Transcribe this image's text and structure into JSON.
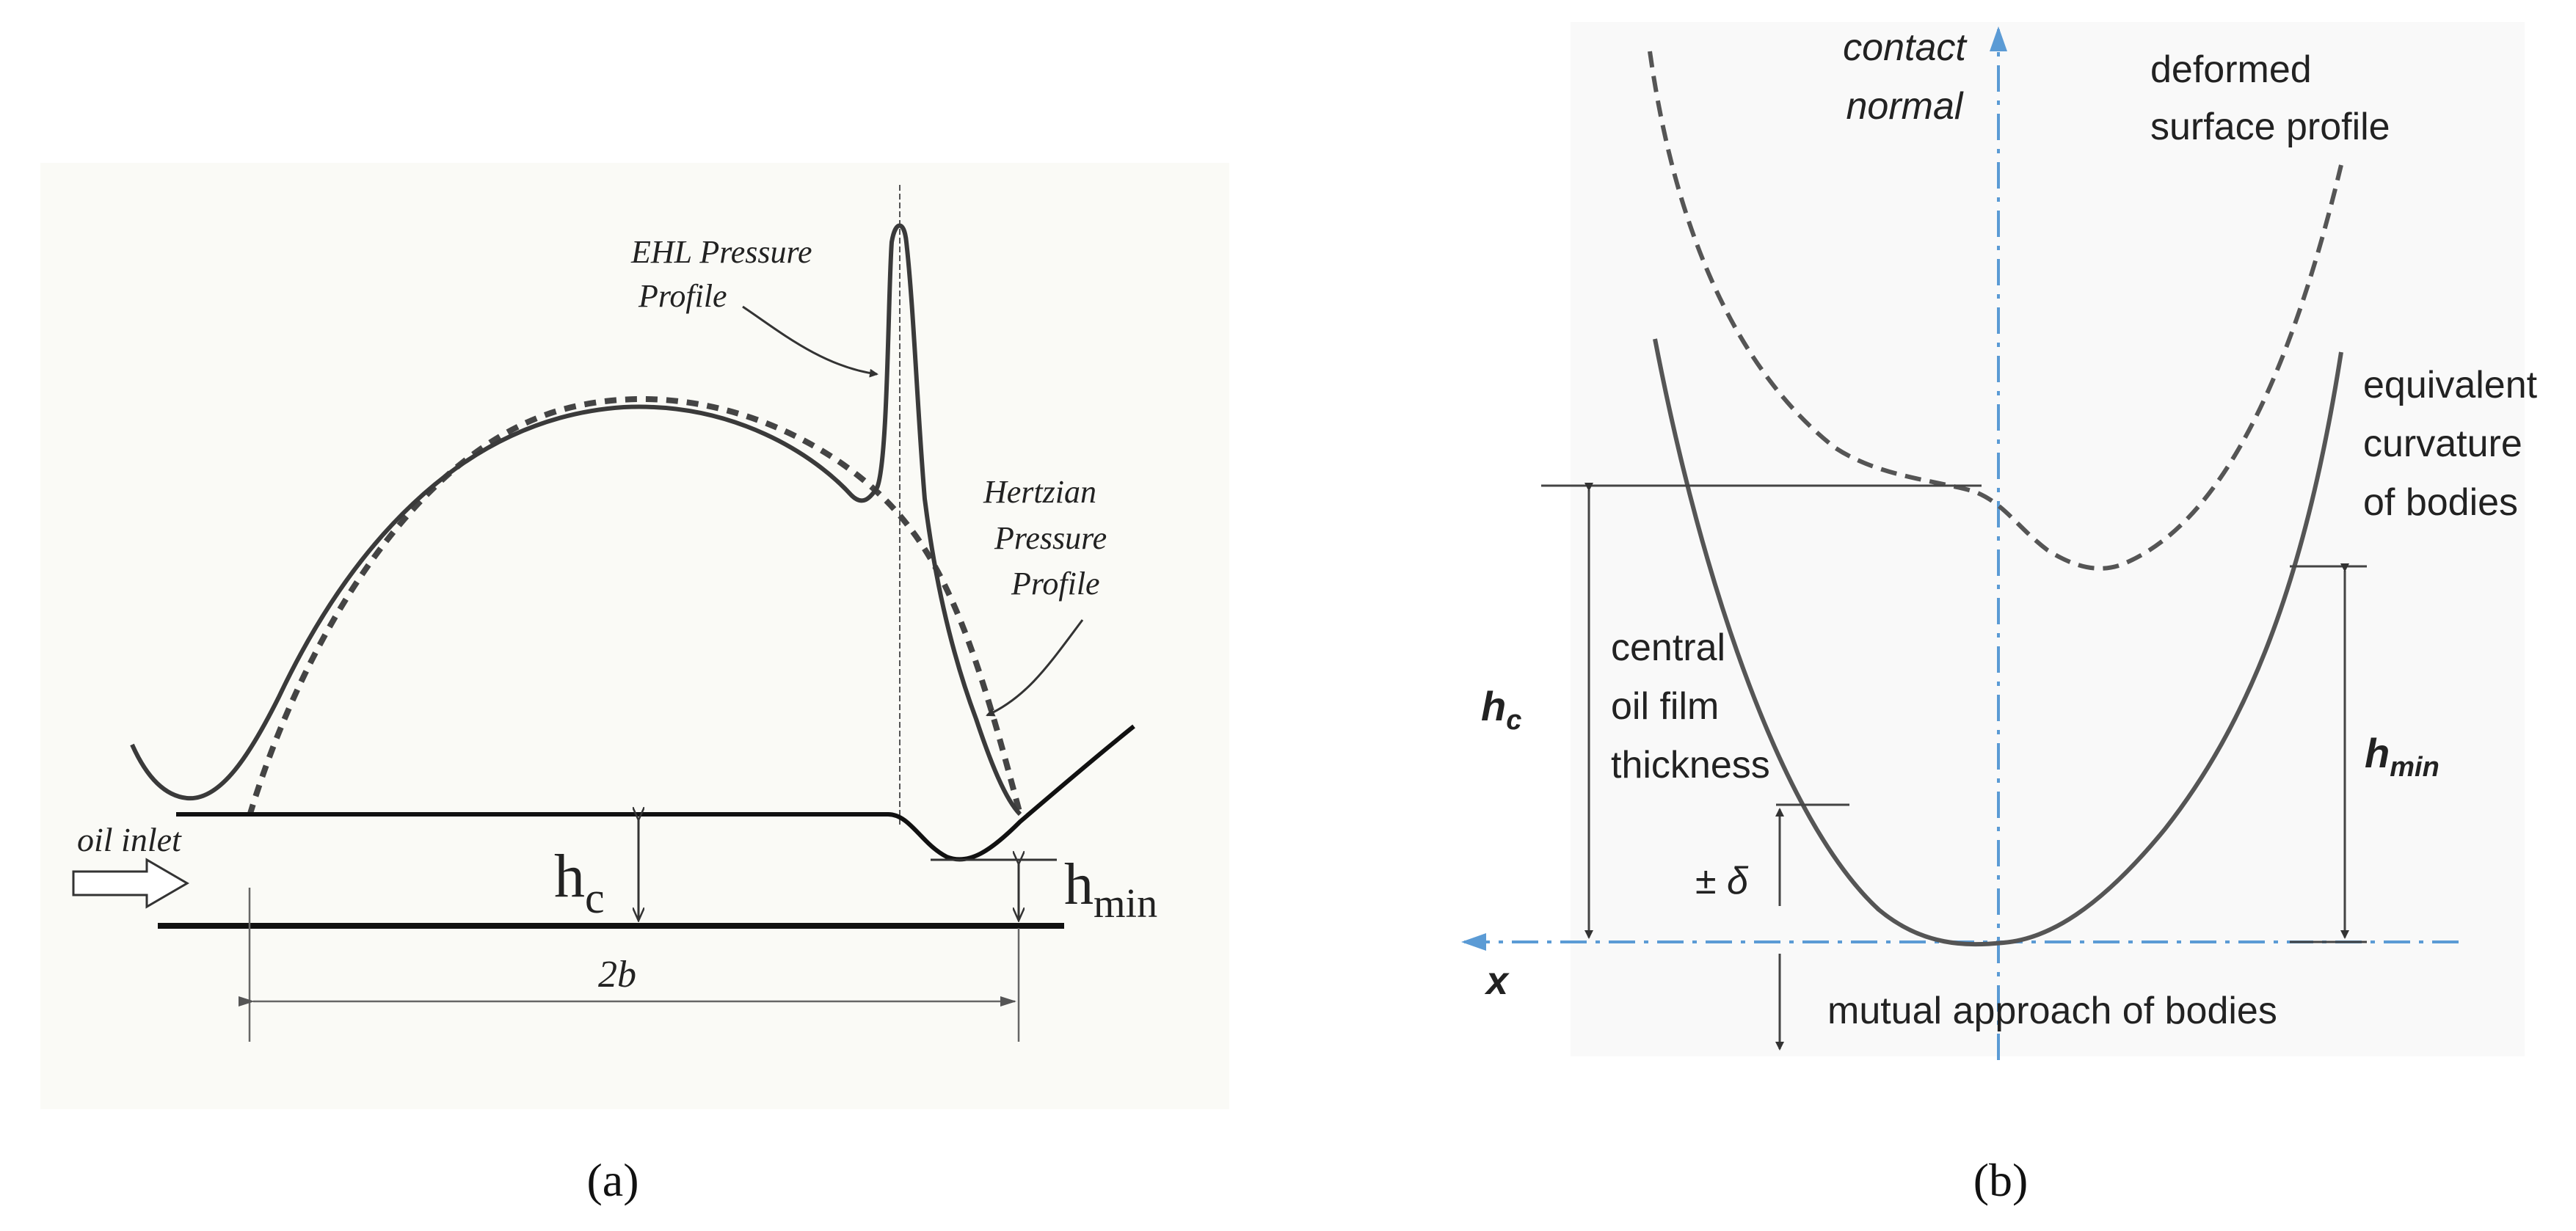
{
  "panel_a": {
    "caption": "(a)",
    "labels": {
      "ehl_line1": "EHL Pressure",
      "ehl_line2": "Profile",
      "hertz_line1": "Hertzian",
      "hertz_line2": "Pressure",
      "hertz_line3": "Profile",
      "oil_inlet": "oil inlet",
      "hc_main": "h",
      "hc_sub": "c",
      "hmin_main": "h",
      "hmin_sub": "min",
      "width": "2b"
    }
  },
  "panel_b": {
    "caption": "(b)",
    "labels": {
      "contact_line1": "contact",
      "contact_line2": "normal",
      "deformed_line1": "deformed",
      "deformed_line2": "surface profile",
      "equiv_line1": "equivalent",
      "equiv_line2": "curvature",
      "equiv_line3": "of bodies",
      "central_line1": "central",
      "central_line2": "oil film",
      "central_line3": "thickness",
      "hc_main": "h",
      "hc_sub": "c",
      "hmin_main": "h",
      "hmin_sub": "min",
      "delta": "± δ",
      "x_axis": "x",
      "mutual": "mutual approach of bodies"
    }
  },
  "colors": {
    "ink": "#222222",
    "curve": "#3c3c3c",
    "axis_blue": "#5b9bd5",
    "dashed_gray": "#555555"
  }
}
